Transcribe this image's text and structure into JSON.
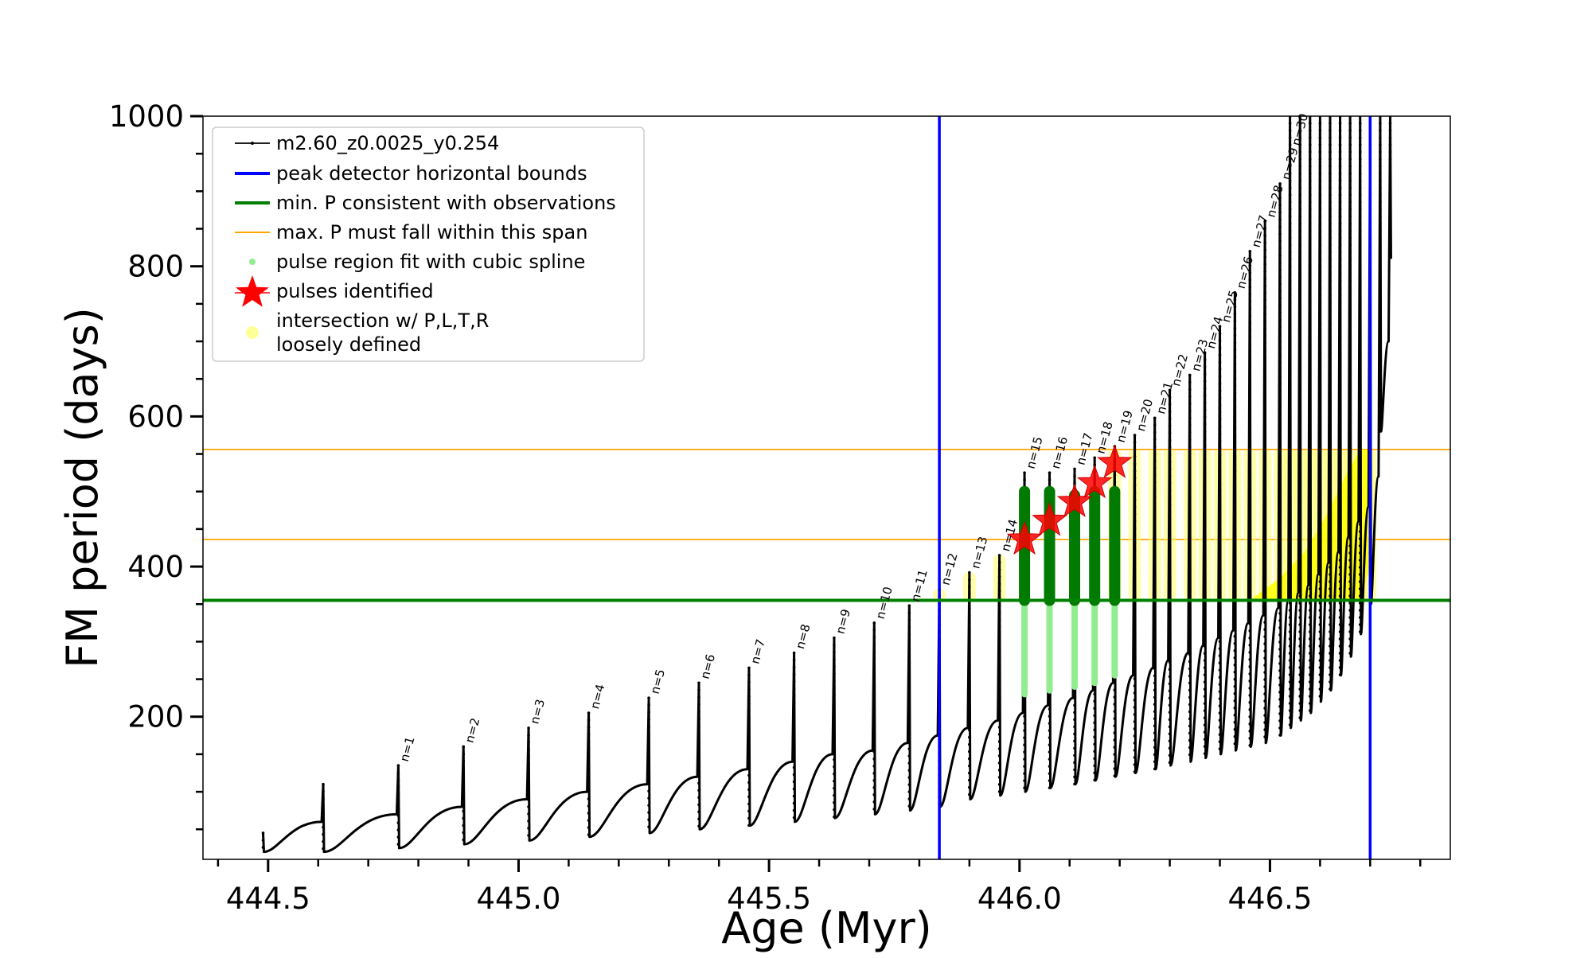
{
  "chart_data": {
    "type": "line",
    "xlabel": "Age (Myr)",
    "ylabel": "FM period (days)",
    "xlim": [
      444.37,
      446.86
    ],
    "ylim": [
      10,
      1000
    ],
    "x_ticks": [
      444.5,
      445.0,
      445.5,
      446.0,
      446.5
    ],
    "x_tick_labels": [
      "444.5",
      "445.0",
      "445.5",
      "446.0",
      "446.5"
    ],
    "y_ticks": [
      200,
      400,
      600,
      800,
      1000
    ],
    "y_tick_labels": [
      "200",
      "400",
      "600",
      "800",
      "1000"
    ],
    "x_minor_step": 0.1,
    "y_minor_step": 50,
    "grid": false,
    "legend_position": "upper-left",
    "legend": [
      {
        "label": "m2.60_z0.0025_y0.254",
        "style": "line-dot",
        "color": "#000000"
      },
      {
        "label": "peak detector horizontal bounds",
        "style": "line",
        "color": "#0000ff"
      },
      {
        "label": "min. P consistent with observations",
        "style": "line",
        "color": "#008000"
      },
      {
        "label": "max. P must fall within this span",
        "style": "line-thin",
        "color": "#ffa500"
      },
      {
        "label": "pulse region fit with cubic spline",
        "style": "dot",
        "color": "#90ee90"
      },
      {
        "label": "pulses identified",
        "style": "star",
        "color": "#ff0000"
      },
      {
        "label": "intersection w/ P,L,T,R",
        "label_line2": "loosely defined",
        "style": "dot",
        "color": "#ffff99"
      }
    ],
    "peak_detector_bounds_x": [
      445.84,
      446.7
    ],
    "min_period": 355,
    "max_period_span": [
      436,
      556
    ],
    "series": [
      {
        "name": "m2.60_z0.0025_y0.254",
        "pulses": [
          {
            "x": 444.49,
            "top": 45,
            "min": 20,
            "plateau": 60,
            "label": ""
          },
          {
            "x": 444.61,
            "top": 110,
            "min": 20,
            "plateau": 70,
            "label": ""
          },
          {
            "x": 444.76,
            "top": 135,
            "min": 25,
            "plateau": 80,
            "label": "n=1"
          },
          {
            "x": 444.89,
            "top": 160,
            "min": 30,
            "plateau": 90,
            "label": "n=2"
          },
          {
            "x": 445.02,
            "top": 185,
            "min": 35,
            "plateau": 100,
            "label": "n=3"
          },
          {
            "x": 445.14,
            "top": 205,
            "min": 40,
            "plateau": 110,
            "label": "n=4"
          },
          {
            "x": 445.26,
            "top": 225,
            "min": 45,
            "plateau": 120,
            "label": "n=5"
          },
          {
            "x": 445.36,
            "top": 245,
            "min": 50,
            "plateau": 130,
            "label": "n=6"
          },
          {
            "x": 445.46,
            "top": 265,
            "min": 55,
            "plateau": 140,
            "label": "n=7"
          },
          {
            "x": 445.55,
            "top": 285,
            "min": 60,
            "plateau": 150,
            "label": "n=8"
          },
          {
            "x": 445.63,
            "top": 305,
            "min": 65,
            "plateau": 155,
            "label": "n=9"
          },
          {
            "x": 445.71,
            "top": 325,
            "min": 70,
            "plateau": 165,
            "label": "n=10"
          },
          {
            "x": 445.78,
            "top": 348,
            "min": 75,
            "plateau": 175,
            "label": "n=11"
          },
          {
            "x": 445.84,
            "top": 370,
            "min": 80,
            "plateau": 185,
            "label": "n=12"
          },
          {
            "x": 445.9,
            "top": 392,
            "min": 90,
            "plateau": 195,
            "label": "n=13"
          },
          {
            "x": 445.96,
            "top": 415,
            "min": 95,
            "plateau": 205,
            "label": "n=14"
          },
          {
            "x": 446.01,
            "top": 525,
            "min": 100,
            "plateau": 215,
            "label": "n=15"
          },
          {
            "x": 446.06,
            "top": 525,
            "min": 105,
            "plateau": 225,
            "label": "n=16"
          },
          {
            "x": 446.11,
            "top": 530,
            "min": 110,
            "plateau": 235,
            "label": "n=17"
          },
          {
            "x": 446.15,
            "top": 545,
            "min": 115,
            "plateau": 245,
            "label": "n=18"
          },
          {
            "x": 446.19,
            "top": 560,
            "min": 120,
            "plateau": 255,
            "label": "n=19"
          },
          {
            "x": 446.23,
            "top": 575,
            "min": 125,
            "plateau": 265,
            "label": "n=20"
          },
          {
            "x": 446.27,
            "top": 598,
            "min": 130,
            "plateau": 275,
            "label": "n=21"
          },
          {
            "x": 446.3,
            "top": 635,
            "min": 135,
            "plateau": 285,
            "label": "n=22"
          },
          {
            "x": 446.34,
            "top": 655,
            "min": 140,
            "plateau": 295,
            "label": "n=23"
          },
          {
            "x": 446.37,
            "top": 685,
            "min": 145,
            "plateau": 305,
            "label": "n=24"
          },
          {
            "x": 446.4,
            "top": 720,
            "min": 150,
            "plateau": 315,
            "label": "n=25"
          },
          {
            "x": 446.43,
            "top": 765,
            "min": 155,
            "plateau": 325,
            "label": "n=26"
          },
          {
            "x": 446.46,
            "top": 820,
            "min": 160,
            "plateau": 335,
            "label": "n=27"
          },
          {
            "x": 446.49,
            "top": 860,
            "min": 165,
            "plateau": 345,
            "label": "n=28"
          },
          {
            "x": 446.52,
            "top": 910,
            "min": 175,
            "plateau": 355,
            "label": "n=29"
          },
          {
            "x": 446.54,
            "top": 1000,
            "min": 185,
            "plateau": 365,
            "label": "n=30"
          },
          {
            "x": 446.56,
            "top": 1000,
            "min": 195,
            "plateau": 375,
            "label": ""
          },
          {
            "x": 446.58,
            "top": 1000,
            "min": 205,
            "plateau": 390,
            "label": ""
          },
          {
            "x": 446.6,
            "top": 1000,
            "min": 220,
            "plateau": 405,
            "label": ""
          },
          {
            "x": 446.62,
            "top": 1000,
            "min": 235,
            "plateau": 420,
            "label": ""
          },
          {
            "x": 446.64,
            "top": 1000,
            "min": 255,
            "plateau": 440,
            "label": ""
          },
          {
            "x": 446.66,
            "top": 1000,
            "min": 280,
            "plateau": 460,
            "label": ""
          },
          {
            "x": 446.68,
            "top": 1000,
            "min": 310,
            "plateau": 480,
            "label": ""
          },
          {
            "x": 446.7,
            "top": 1000,
            "min": 350,
            "plateau": 520,
            "label": ""
          },
          {
            "x": 446.72,
            "top": 1000,
            "min": 580,
            "plateau": 700,
            "label": ""
          },
          {
            "x": 446.74,
            "top": 1000,
            "min": 810,
            "plateau": 900,
            "label": ""
          }
        ]
      },
      {
        "name": "pulse region fit with cubic spline",
        "segments": [
          {
            "x": 446.01,
            "low": 230,
            "high": 500
          },
          {
            "x": 446.06,
            "low": 235,
            "high": 500
          },
          {
            "x": 446.11,
            "low": 240,
            "high": 495
          },
          {
            "x": 446.15,
            "low": 245,
            "high": 500
          },
          {
            "x": 446.19,
            "low": 255,
            "high": 500
          }
        ],
        "dark_segments_low": 355
      },
      {
        "name": "pulses identified",
        "points": [
          {
            "x": 446.01,
            "y": 436
          },
          {
            "x": 446.06,
            "y": 461
          },
          {
            "x": 446.11,
            "y": 486
          },
          {
            "x": 446.15,
            "y": 511
          },
          {
            "x": 446.19,
            "y": 538
          }
        ]
      },
      {
        "name": "intersection w/ P,L,T,R loosely defined",
        "columns": [
          {
            "x": 445.84,
            "low": 355,
            "high": 370
          },
          {
            "x": 445.9,
            "low": 355,
            "high": 392
          },
          {
            "x": 445.96,
            "low": 355,
            "high": 415
          },
          {
            "x": 446.19,
            "low": 355,
            "high": 556
          },
          {
            "x": 446.23,
            "low": 355,
            "high": 556
          },
          {
            "x": 446.27,
            "low": 355,
            "high": 556
          },
          {
            "x": 446.3,
            "low": 355,
            "high": 556
          },
          {
            "x": 446.34,
            "low": 355,
            "high": 556
          },
          {
            "x": 446.37,
            "low": 355,
            "high": 556
          },
          {
            "x": 446.4,
            "low": 355,
            "high": 556
          },
          {
            "x": 446.43,
            "low": 355,
            "high": 556
          },
          {
            "x": 446.46,
            "low": 355,
            "high": 556
          },
          {
            "x": 446.49,
            "low": 355,
            "high": 556
          },
          {
            "x": 446.52,
            "low": 355,
            "high": 556
          },
          {
            "x": 446.54,
            "low": 355,
            "high": 556
          },
          {
            "x": 446.56,
            "low": 355,
            "high": 556
          },
          {
            "x": 446.58,
            "low": 355,
            "high": 556
          },
          {
            "x": 446.6,
            "low": 355,
            "high": 556
          },
          {
            "x": 446.62,
            "low": 355,
            "high": 556
          },
          {
            "x": 446.64,
            "low": 355,
            "high": 556
          },
          {
            "x": 446.66,
            "low": 355,
            "high": 556
          },
          {
            "x": 446.68,
            "low": 355,
            "high": 556
          },
          {
            "x": 446.7,
            "low": 355,
            "high": 556
          }
        ],
        "band": [
          {
            "x": 446.46,
            "low": 355,
            "high": 355
          },
          {
            "x": 446.52,
            "low": 355,
            "high": 385
          },
          {
            "x": 446.57,
            "low": 355,
            "high": 420
          },
          {
            "x": 446.61,
            "low": 355,
            "high": 465
          },
          {
            "x": 446.65,
            "low": 355,
            "high": 520
          },
          {
            "x": 446.68,
            "low": 355,
            "high": 556
          },
          {
            "x": 446.7,
            "low": 400,
            "high": 556
          }
        ]
      }
    ]
  }
}
